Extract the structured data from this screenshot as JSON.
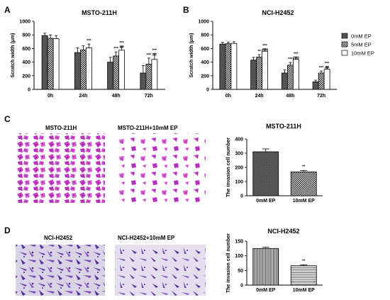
{
  "panel_labels": [
    "A",
    "B",
    "C",
    "D"
  ],
  "micrograph_titles": {
    "c_left": "MSTO-211H",
    "c_right": "MSTO-211H+10mM EP",
    "d_left": "NCI-H2452",
    "d_right": "NCI-H2452+10mM EP"
  },
  "colors": {
    "bar_edge": "#000000",
    "stain_c": "#c63cc8",
    "stain_d": "#7a4ab8"
  },
  "chart_data": [
    {
      "id": "A",
      "type": "bar",
      "title": "MSTO-211H",
      "ylabel": "Scratch width (μm)",
      "ylim": [
        0,
        1000
      ],
      "yticks": [
        0,
        200,
        400,
        600,
        800,
        1000
      ],
      "categories": [
        "0h",
        "24h",
        "48h",
        "72h"
      ],
      "series": [
        {
          "name": "0mM EP",
          "pattern": "dark-hatch",
          "values": [
            790,
            540,
            400,
            240
          ],
          "err": [
            35,
            70,
            70,
            110
          ]
        },
        {
          "name": "5mM EP",
          "pattern": "checker",
          "values": [
            750,
            580,
            490,
            370
          ],
          "err": [
            50,
            60,
            60,
            90
          ]
        },
        {
          "name": "10mM EP",
          "pattern": "white",
          "values": [
            745,
            610,
            575,
            440
          ],
          "err": [
            45,
            55,
            60,
            85
          ]
        }
      ],
      "annotations": [
        [
          "",
          "",
          ""
        ],
        [
          "",
          "",
          "***"
        ],
        [
          "",
          "***",
          "***\n##"
        ],
        [
          "",
          "***",
          "***\n##"
        ]
      ]
    },
    {
      "id": "B",
      "type": "bar",
      "title": "NCI-H2452",
      "ylabel": "Scratch width (μm)",
      "ylim": [
        0,
        1000
      ],
      "yticks": [
        0,
        200,
        400,
        600,
        800,
        1000
      ],
      "categories": [
        "0h",
        "24h",
        "48h",
        "72h"
      ],
      "series": [
        {
          "name": "0mM EP",
          "pattern": "dark-hatch",
          "values": [
            665,
            430,
            240,
            110
          ],
          "err": [
            25,
            40,
            45,
            25
          ]
        },
        {
          "name": "5mM EP",
          "pattern": "checker",
          "values": [
            670,
            475,
            355,
            240
          ],
          "err": [
            25,
            35,
            40,
            30
          ]
        },
        {
          "name": "10mM EP",
          "pattern": "white",
          "values": [
            675,
            560,
            440,
            295
          ],
          "err": [
            25,
            35,
            35,
            40
          ]
        }
      ],
      "annotations": [
        [
          "",
          "",
          ""
        ],
        [
          "",
          "**",
          "***\n###"
        ],
        [
          "",
          "***",
          "***\n###"
        ],
        [
          "",
          "***",
          "***\n##"
        ]
      ],
      "legend": {
        "position": "right",
        "entries": [
          "0mM EP",
          "5mM EP",
          "10mM EP"
        ]
      }
    },
    {
      "id": "C",
      "type": "bar",
      "title": "MSTO-211H",
      "ylabel": "The invasion cell number",
      "ylim": [
        0,
        400
      ],
      "yticks": [
        0,
        100,
        200,
        300,
        400
      ],
      "categories": [
        "0mM EP",
        "10mM EP"
      ],
      "values": [
        310,
        168
      ],
      "err": [
        20,
        10
      ],
      "patterns": [
        "dark-hatch",
        "checker"
      ],
      "annotations": [
        "",
        "**"
      ]
    },
    {
      "id": "D",
      "type": "bar",
      "title": "NCI-H2452",
      "ylabel": "The invasion cell number",
      "ylim": [
        0,
        150
      ],
      "yticks": [
        0,
        50,
        100,
        150
      ],
      "categories": [
        "0mM EP",
        "10mM EP"
      ],
      "values": [
        125,
        66
      ],
      "err": [
        4,
        3
      ],
      "patterns": [
        "vlines",
        "hlines"
      ],
      "annotations": [
        "",
        "**"
      ]
    }
  ]
}
